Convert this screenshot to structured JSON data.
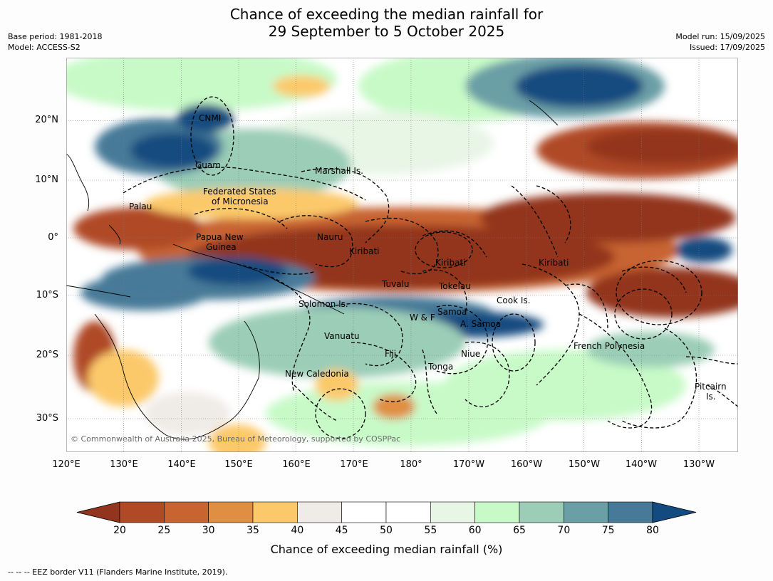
{
  "title_line1": "Chance of exceeding the median rainfall for",
  "title_line2": "29 September to 5 October 2025",
  "meta_left": [
    "Base period: 1981-2018",
    "Model: ACCESS-S2"
  ],
  "meta_right": [
    "Model run: 15/09/2025",
    "Issued: 17/09/2025"
  ],
  "latitude_labels": [
    "20°N",
    "10°N",
    "0°",
    "10°S",
    "20°S",
    "30°S"
  ],
  "longitude_labels": [
    "120°E",
    "130°E",
    "140°E",
    "150°E",
    "160°E",
    "170°E",
    "180°",
    "170°W",
    "160°W",
    "150°W",
    "140°W",
    "130°W"
  ],
  "regions": [
    "CNMI",
    "Guam",
    "Marshall Is.",
    "Federated States",
    "of Micronesia",
    "Palau",
    "Papua New",
    "Guinea",
    "Nauru",
    "Kiribati",
    "Kiribati",
    "Kiribati",
    "Tuvalu",
    "Tokelau",
    "Cook Is.",
    "Solomon Is.",
    "W & F",
    "Samoa",
    "A. Samoa",
    "Vanuatu",
    "Fiji",
    "Niue",
    "French Polynesia",
    "Tonga",
    "New Caledonia",
    "Pitcairn",
    "Is."
  ],
  "copyright": "© Commonwealth of Australia 2025, Bureau of Meteorology, supported by COSPPac",
  "colorbar": {
    "ticks": [
      "20",
      "25",
      "30",
      "35",
      "40",
      "45",
      "50",
      "55",
      "60",
      "65",
      "70",
      "75",
      "80"
    ],
    "colors": [
      "#93351e",
      "#b04a26",
      "#c86430",
      "#e08e42",
      "#fcc96a",
      "#efebe6",
      "#ffffff",
      "#ffffff",
      "#e8f6e6",
      "#c8fac8",
      "#9bcdb7",
      "#6a9fa6",
      "#477a98",
      "#134b80"
    ],
    "label": "Chance of exceeding median rainfall (%)"
  },
  "footnote": "-- -- -- EEZ border V11 (Flanders Marine Institute, 2019)."
}
